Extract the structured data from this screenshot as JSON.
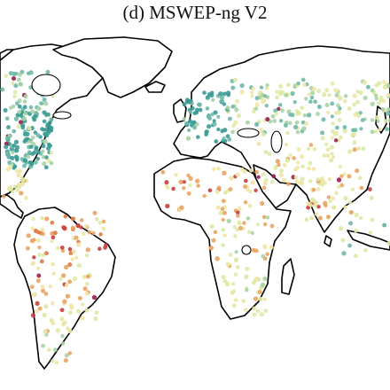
{
  "title": "(d) MSWEP-ng V2",
  "palette": {
    "teal": "#3b9a93",
    "teal_light": "#6fb9a8",
    "green_pale": "#a9d3a5",
    "yellow_pale": "#dfe9a6",
    "beige": "#eee5a6",
    "orange": "#e9a463",
    "orange_dark": "#dd7a45",
    "red": "#c7403f",
    "maroon": "#9a1f4a"
  },
  "legend": []
}
